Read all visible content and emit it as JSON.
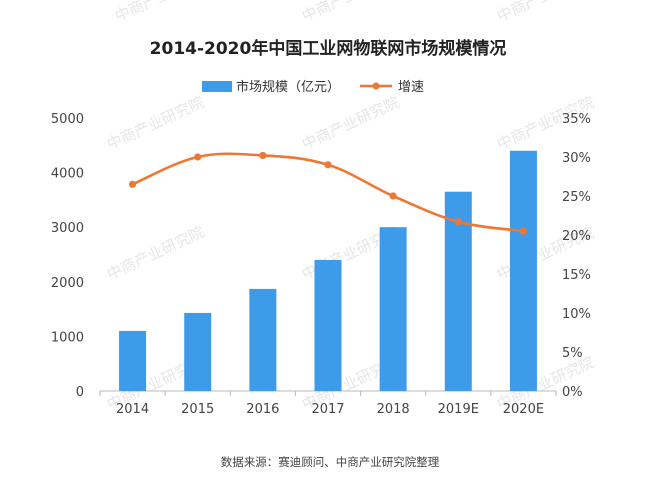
{
  "chart_data": {
    "type": "bar",
    "title": "2014-2020年中国工业网物联网市场规模情况",
    "categories": [
      "2014",
      "2015",
      "2016",
      "2017",
      "2018",
      "2019E",
      "2020E"
    ],
    "series": [
      {
        "name": "市场规模（亿元）",
        "type": "bar",
        "axis": "left",
        "color": "#3d9be9",
        "values": [
          1100,
          1430,
          1870,
          2400,
          3000,
          3650,
          4400
        ]
      },
      {
        "name": "增速",
        "type": "line",
        "axis": "right",
        "color": "#ee7733",
        "values": [
          26.5,
          30.0,
          30.2,
          29.0,
          25.0,
          21.7,
          20.5
        ]
      }
    ],
    "y_left": {
      "ylim": [
        0,
        5000
      ],
      "ticks": [
        0,
        1000,
        2000,
        3000,
        4000,
        5000
      ]
    },
    "y_right": {
      "ylim": [
        0,
        35
      ],
      "ticks": [
        0,
        5,
        10,
        15,
        20,
        25,
        30,
        35
      ],
      "unit": "%"
    },
    "grid": false,
    "legend_position": "top-center"
  },
  "watermark": "中商产业研究院",
  "source_note": "数据来源：赛迪顾问、中商产业研究院整理"
}
